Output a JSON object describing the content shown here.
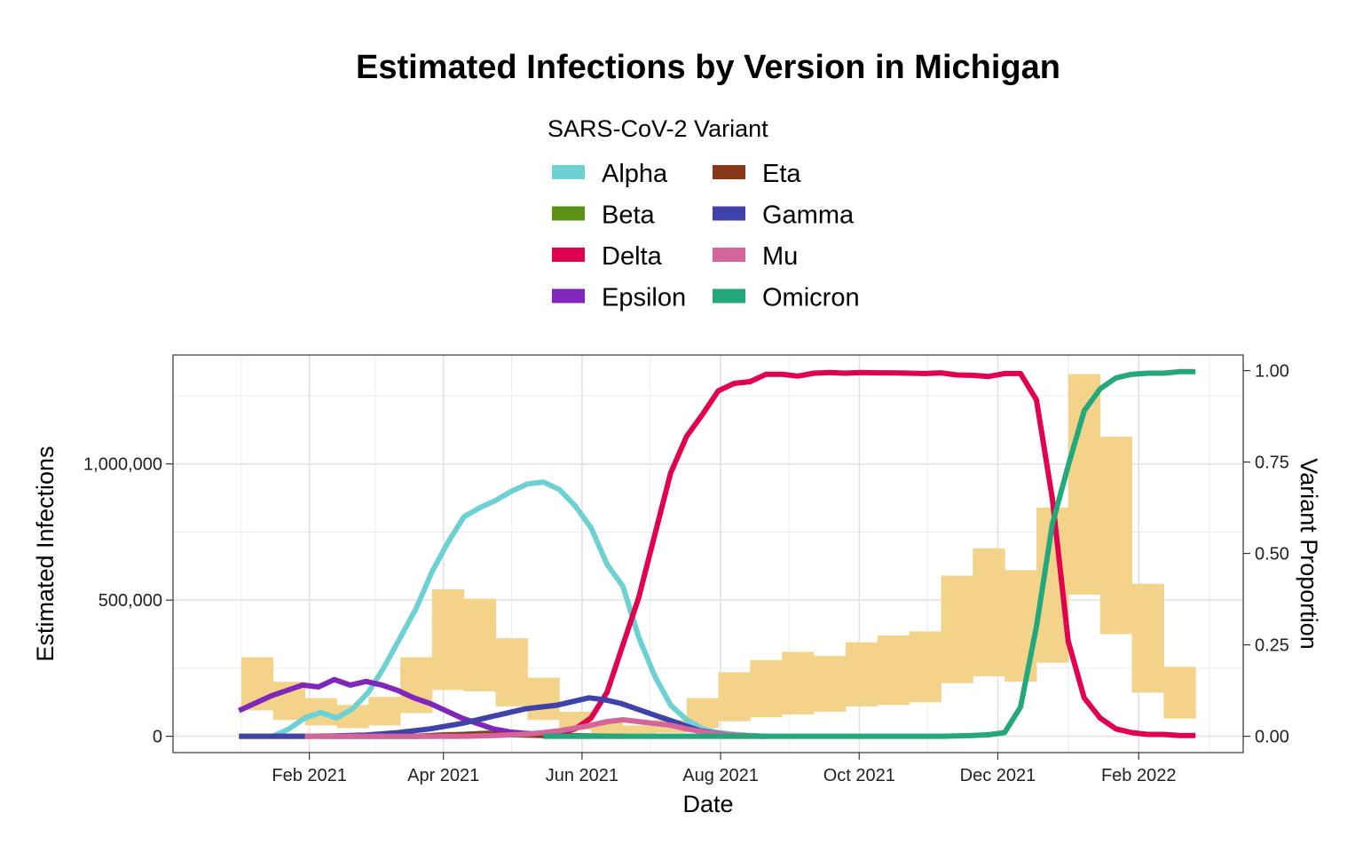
{
  "chart_data": {
    "type": "line",
    "title": "Estimated Infections by Version in Michigan",
    "xlabel": "Date",
    "ylabel": "Estimated Infections",
    "y2label": "Variant Proportion",
    "legend_title": "SARS-CoV-2 Variant",
    "legend_position": "top",
    "grid": true,
    "xlim": [
      "2020-12-03",
      "2022-03-19"
    ],
    "ylim": [
      -60000,
      1400000
    ],
    "y2lim": [
      -0.0447,
      1.0427
    ],
    "x_ticks": [
      {
        "date": "2021-02-01",
        "label": "Feb 2021"
      },
      {
        "date": "2021-04-01",
        "label": "Apr 2021"
      },
      {
        "date": "2021-06-01",
        "label": "Jun 2021"
      },
      {
        "date": "2021-08-01",
        "label": "Aug 2021"
      },
      {
        "date": "2021-10-01",
        "label": "Oct 2021"
      },
      {
        "date": "2021-12-01",
        "label": "Dec 2021"
      },
      {
        "date": "2022-02-01",
        "label": "Feb 2022"
      }
    ],
    "y_ticks": [
      {
        "value": 0,
        "label": "0"
      },
      {
        "value": 500000,
        "label": "500,000"
      },
      {
        "value": 1000000,
        "label": "1,000,000"
      }
    ],
    "y2_ticks": [
      {
        "value": 0,
        "label": "0.00"
      },
      {
        "value": 0.25,
        "label": "0.25"
      },
      {
        "value": 0.5,
        "label": "0.50"
      },
      {
        "value": 0.75,
        "label": "0.75"
      },
      {
        "value": 1,
        "label": "1.00"
      }
    ],
    "ribbon": {
      "color": "#f3d38a",
      "bands": [
        {
          "start": "2021-01-02",
          "end": "2021-01-16",
          "low": 95000,
          "high": 290000
        },
        {
          "start": "2021-01-16",
          "end": "2021-01-30",
          "low": 60000,
          "high": 200000
        },
        {
          "start": "2021-01-30",
          "end": "2021-02-13",
          "low": 40000,
          "high": 140000
        },
        {
          "start": "2021-02-13",
          "end": "2021-02-27",
          "low": 30000,
          "high": 115000
        },
        {
          "start": "2021-02-27",
          "end": "2021-03-13",
          "low": 40000,
          "high": 145000
        },
        {
          "start": "2021-03-13",
          "end": "2021-03-27",
          "low": 85000,
          "high": 290000
        },
        {
          "start": "2021-03-27",
          "end": "2021-04-10",
          "low": 170000,
          "high": 540000
        },
        {
          "start": "2021-04-10",
          "end": "2021-04-24",
          "low": 165000,
          "high": 505000
        },
        {
          "start": "2021-04-24",
          "end": "2021-05-08",
          "low": 110000,
          "high": 360000
        },
        {
          "start": "2021-05-08",
          "end": "2021-05-22",
          "low": 60000,
          "high": 215000
        },
        {
          "start": "2021-05-22",
          "end": "2021-06-05",
          "low": 25000,
          "high": 90000
        },
        {
          "start": "2021-06-05",
          "end": "2021-06-19",
          "low": 10000,
          "high": 50000
        },
        {
          "start": "2021-06-19",
          "end": "2021-07-03",
          "low": 8000,
          "high": 40000
        },
        {
          "start": "2021-07-03",
          "end": "2021-07-17",
          "low": 12000,
          "high": 60000
        },
        {
          "start": "2021-07-17",
          "end": "2021-07-31",
          "low": 30000,
          "high": 140000
        },
        {
          "start": "2021-07-31",
          "end": "2021-08-14",
          "low": 55000,
          "high": 235000
        },
        {
          "start": "2021-08-14",
          "end": "2021-08-28",
          "low": 70000,
          "high": 280000
        },
        {
          "start": "2021-08-28",
          "end": "2021-09-11",
          "low": 80000,
          "high": 310000
        },
        {
          "start": "2021-09-11",
          "end": "2021-09-25",
          "low": 90000,
          "high": 295000
        },
        {
          "start": "2021-09-25",
          "end": "2021-10-09",
          "low": 110000,
          "high": 345000
        },
        {
          "start": "2021-10-09",
          "end": "2021-10-23",
          "low": 115000,
          "high": 370000
        },
        {
          "start": "2021-10-23",
          "end": "2021-11-06",
          "low": 125000,
          "high": 385000
        },
        {
          "start": "2021-11-06",
          "end": "2021-11-20",
          "low": 195000,
          "high": 590000
        },
        {
          "start": "2021-11-20",
          "end": "2021-12-04",
          "low": 220000,
          "high": 690000
        },
        {
          "start": "2021-12-04",
          "end": "2021-12-18",
          "low": 200000,
          "high": 610000
        },
        {
          "start": "2021-12-18",
          "end": "2022-01-01",
          "low": 270000,
          "high": 840000
        },
        {
          "start": "2022-01-01",
          "end": "2022-01-15",
          "low": 520000,
          "high": 1330000
        },
        {
          "start": "2022-01-15",
          "end": "2022-01-29",
          "low": 375000,
          "high": 1100000
        },
        {
          "start": "2022-01-29",
          "end": "2022-02-12",
          "low": 160000,
          "high": 560000
        },
        {
          "start": "2022-02-12",
          "end": "2022-02-26",
          "low": 65000,
          "high": 255000
        }
      ]
    },
    "series": [
      {
        "name": "Alpha",
        "color": "#6dd0d3",
        "points": [
          [
            "2021-01-16",
            0
          ],
          [
            "2021-01-23",
            0.02
          ],
          [
            "2021-01-30",
            0.05
          ],
          [
            "2021-02-06",
            0.065
          ],
          [
            "2021-02-13",
            0.05
          ],
          [
            "2021-02-20",
            0.075
          ],
          [
            "2021-02-27",
            0.12
          ],
          [
            "2021-03-06",
            0.19
          ],
          [
            "2021-03-13",
            0.27
          ],
          [
            "2021-03-20",
            0.35
          ],
          [
            "2021-03-27",
            0.45
          ],
          [
            "2021-04-03",
            0.53
          ],
          [
            "2021-04-10",
            0.6
          ],
          [
            "2021-04-17",
            0.625
          ],
          [
            "2021-04-24",
            0.645
          ],
          [
            "2021-05-01",
            0.67
          ],
          [
            "2021-05-08",
            0.69
          ],
          [
            "2021-05-15",
            0.695
          ],
          [
            "2021-05-22",
            0.675
          ],
          [
            "2021-05-29",
            0.63
          ],
          [
            "2021-06-05",
            0.57
          ],
          [
            "2021-06-12",
            0.47
          ],
          [
            "2021-06-19",
            0.41
          ],
          [
            "2021-06-26",
            0.27
          ],
          [
            "2021-07-03",
            0.165
          ],
          [
            "2021-07-10",
            0.085
          ],
          [
            "2021-07-17",
            0.045
          ],
          [
            "2021-07-24",
            0.02
          ],
          [
            "2021-07-31",
            0.01
          ],
          [
            "2021-08-07",
            0.005
          ],
          [
            "2021-08-14",
            0.002
          ],
          [
            "2021-08-21",
            0
          ]
        ]
      },
      {
        "name": "Beta",
        "color": "#5a9214",
        "points": [
          [
            "2021-01-01",
            0
          ],
          [
            "2021-03-27",
            0
          ],
          [
            "2021-04-10",
            0.005
          ],
          [
            "2021-04-24",
            0.01
          ],
          [
            "2021-05-08",
            0.005
          ],
          [
            "2021-05-22",
            0.003
          ],
          [
            "2021-06-05",
            0.001
          ],
          [
            "2021-06-19",
            0
          ]
        ]
      },
      {
        "name": "Delta",
        "color": "#e0004f",
        "points": [
          [
            "2021-05-15",
            0
          ],
          [
            "2021-05-22",
            0.01
          ],
          [
            "2021-05-29",
            0.02
          ],
          [
            "2021-06-05",
            0.05
          ],
          [
            "2021-06-12",
            0.12
          ],
          [
            "2021-06-19",
            0.25
          ],
          [
            "2021-06-26",
            0.38
          ],
          [
            "2021-07-03",
            0.55
          ],
          [
            "2021-07-10",
            0.72
          ],
          [
            "2021-07-17",
            0.82
          ],
          [
            "2021-07-24",
            0.88
          ],
          [
            "2021-07-31",
            0.945
          ],
          [
            "2021-08-07",
            0.965
          ],
          [
            "2021-08-14",
            0.97
          ],
          [
            "2021-08-21",
            0.99
          ],
          [
            "2021-08-28",
            0.99
          ],
          [
            "2021-09-04",
            0.985
          ],
          [
            "2021-09-11",
            0.993
          ],
          [
            "2021-09-18",
            0.995
          ],
          [
            "2021-09-25",
            0.993
          ],
          [
            "2021-10-02",
            0.995
          ],
          [
            "2021-10-09",
            0.994
          ],
          [
            "2021-10-16",
            0.994
          ],
          [
            "2021-10-23",
            0.993
          ],
          [
            "2021-10-30",
            0.992
          ],
          [
            "2021-11-06",
            0.994
          ],
          [
            "2021-11-13",
            0.988
          ],
          [
            "2021-11-20",
            0.987
          ],
          [
            "2021-11-27",
            0.984
          ],
          [
            "2021-12-04",
            0.992
          ],
          [
            "2021-12-11",
            0.992
          ],
          [
            "2021-12-18",
            0.92
          ],
          [
            "2021-12-25",
            0.65
          ],
          [
            "2022-01-01",
            0.26
          ],
          [
            "2022-01-08",
            0.105
          ],
          [
            "2022-01-15",
            0.05
          ],
          [
            "2022-01-22",
            0.02
          ],
          [
            "2022-01-29",
            0.01
          ],
          [
            "2022-02-05",
            0.005
          ],
          [
            "2022-02-12",
            0.005
          ],
          [
            "2022-02-19",
            0.002
          ],
          [
            "2022-02-26",
            0.002
          ]
        ]
      },
      {
        "name": "Epsilon",
        "color": "#8026bb",
        "points": [
          [
            "2021-01-01",
            0.07
          ],
          [
            "2021-01-08",
            0.09
          ],
          [
            "2021-01-15",
            0.11
          ],
          [
            "2021-01-22",
            0.125
          ],
          [
            "2021-01-29",
            0.14
          ],
          [
            "2021-02-05",
            0.135
          ],
          [
            "2021-02-12",
            0.155
          ],
          [
            "2021-02-19",
            0.14
          ],
          [
            "2021-02-26",
            0.15
          ],
          [
            "2021-03-05",
            0.14
          ],
          [
            "2021-03-12",
            0.125
          ],
          [
            "2021-03-19",
            0.105
          ],
          [
            "2021-03-26",
            0.09
          ],
          [
            "2021-04-02",
            0.07
          ],
          [
            "2021-04-09",
            0.05
          ],
          [
            "2021-04-16",
            0.035
          ],
          [
            "2021-04-23",
            0.02
          ],
          [
            "2021-04-30",
            0.012
          ],
          [
            "2021-05-07",
            0.008
          ],
          [
            "2021-05-14",
            0.005
          ],
          [
            "2021-05-21",
            0.003
          ],
          [
            "2021-05-28",
            0.001
          ],
          [
            "2021-06-04",
            0
          ]
        ]
      },
      {
        "name": "Eta",
        "color": "#87371a",
        "points": [
          [
            "2021-02-06",
            0
          ],
          [
            "2021-03-20",
            0
          ],
          [
            "2021-04-03",
            0.004
          ],
          [
            "2021-04-17",
            0.006
          ],
          [
            "2021-05-01",
            0.004
          ],
          [
            "2021-05-15",
            0.002
          ],
          [
            "2021-05-29",
            0
          ]
        ]
      },
      {
        "name": "Gamma",
        "color": "#3f42a8",
        "points": [
          [
            "2021-01-01",
            0
          ],
          [
            "2021-01-29",
            0
          ],
          [
            "2021-02-12",
            0.001
          ],
          [
            "2021-02-26",
            0.003
          ],
          [
            "2021-03-12",
            0.01
          ],
          [
            "2021-03-26",
            0.02
          ],
          [
            "2021-04-09",
            0.035
          ],
          [
            "2021-04-23",
            0.055
          ],
          [
            "2021-05-07",
            0.075
          ],
          [
            "2021-05-14",
            0.08
          ],
          [
            "2021-05-21",
            0.085
          ],
          [
            "2021-05-28",
            0.095
          ],
          [
            "2021-06-04",
            0.105
          ],
          [
            "2021-06-11",
            0.1
          ],
          [
            "2021-06-18",
            0.09
          ],
          [
            "2021-06-25",
            0.075
          ],
          [
            "2021-07-02",
            0.06
          ],
          [
            "2021-07-09",
            0.045
          ],
          [
            "2021-07-16",
            0.03
          ],
          [
            "2021-07-23",
            0.015
          ],
          [
            "2021-07-30",
            0.008
          ],
          [
            "2021-08-06",
            0.003
          ],
          [
            "2021-08-13",
            0.001
          ],
          [
            "2021-08-20",
            0
          ]
        ]
      },
      {
        "name": "Mu",
        "color": "#d5649b",
        "points": [
          [
            "2021-01-30",
            0
          ],
          [
            "2021-04-10",
            0
          ],
          [
            "2021-04-24",
            0.002
          ],
          [
            "2021-05-08",
            0.006
          ],
          [
            "2021-05-15",
            0.01
          ],
          [
            "2021-05-22",
            0.015
          ],
          [
            "2021-05-29",
            0.022
          ],
          [
            "2021-06-05",
            0.03
          ],
          [
            "2021-06-12",
            0.04
          ],
          [
            "2021-06-19",
            0.045
          ],
          [
            "2021-06-26",
            0.04
          ],
          [
            "2021-07-03",
            0.035
          ],
          [
            "2021-07-10",
            0.03
          ],
          [
            "2021-07-17",
            0.02
          ],
          [
            "2021-07-24",
            0.012
          ],
          [
            "2021-07-31",
            0.006
          ],
          [
            "2021-08-07",
            0.003
          ],
          [
            "2021-08-14",
            0.001
          ],
          [
            "2021-08-21",
            0
          ]
        ]
      },
      {
        "name": "Omicron",
        "color": "#23a87c",
        "points": [
          [
            "2021-05-15",
            0
          ],
          [
            "2021-11-06",
            0
          ],
          [
            "2021-11-20",
            0.002
          ],
          [
            "2021-11-27",
            0.004
          ],
          [
            "2021-12-04",
            0.01
          ],
          [
            "2021-12-11",
            0.08
          ],
          [
            "2021-12-18",
            0.3
          ],
          [
            "2021-12-25",
            0.58
          ],
          [
            "2022-01-01",
            0.74
          ],
          [
            "2022-01-08",
            0.89
          ],
          [
            "2022-01-15",
            0.95
          ],
          [
            "2022-01-22",
            0.98
          ],
          [
            "2022-01-29",
            0.99
          ],
          [
            "2022-02-05",
            0.993
          ],
          [
            "2022-02-12",
            0.993
          ],
          [
            "2022-02-19",
            0.997
          ],
          [
            "2022-02-26",
            0.997
          ]
        ]
      }
    ]
  }
}
